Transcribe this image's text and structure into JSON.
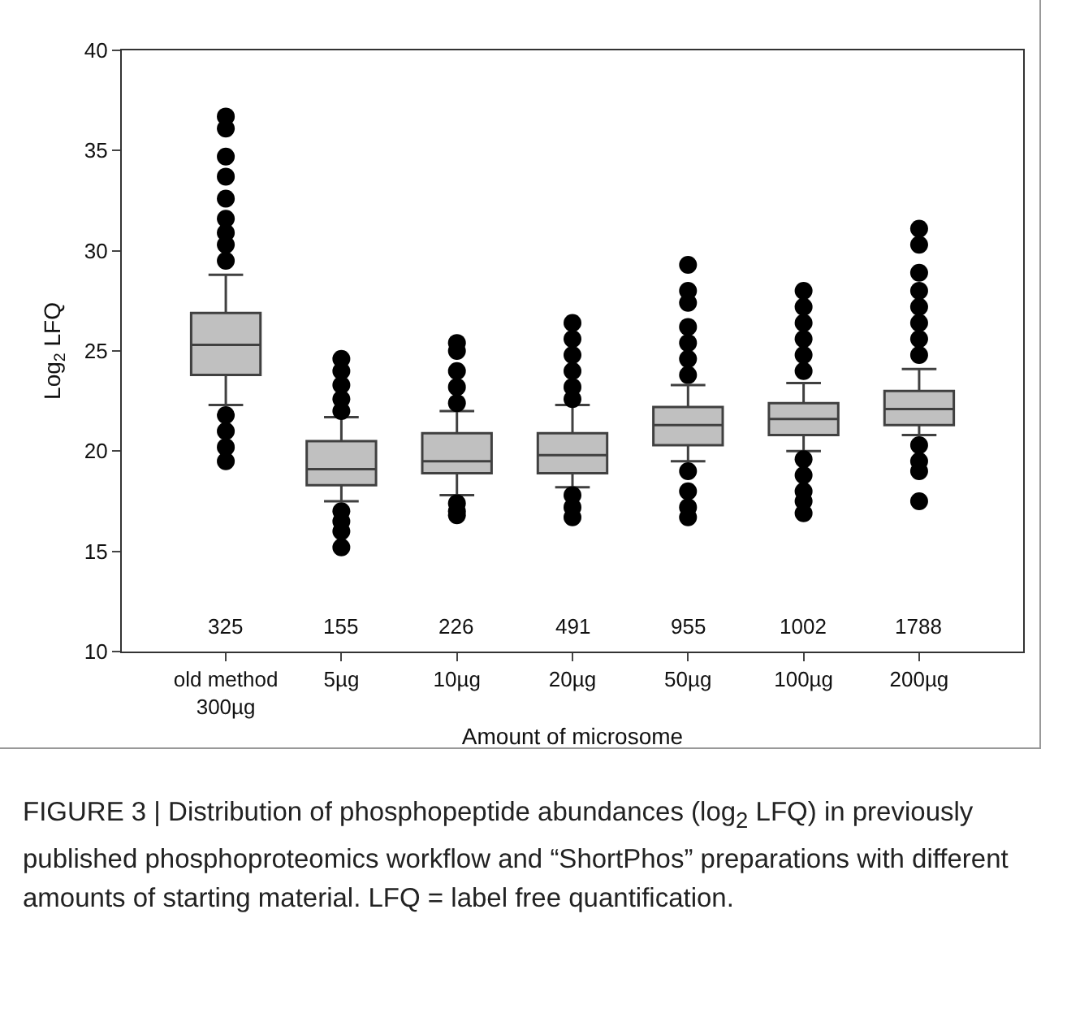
{
  "chart_data": {
    "type": "box",
    "xlabel": "Amount of microsome",
    "ylabel": "Log$_{2}$ LFQ",
    "categories": [
      "old method\n300µg",
      "5µg",
      "10µg",
      "20µg",
      "50µg",
      "100µg",
      "200µg"
    ],
    "ylim": [
      10,
      40
    ],
    "yticks": [
      10,
      15,
      20,
      25,
      30,
      35,
      40
    ],
    "grid": false,
    "marker": "circle",
    "color": "#c0c0c0",
    "boxes": [
      {
        "low": 22.3,
        "q1": 23.8,
        "median": 25.3,
        "q3": 26.9,
        "high": 28.8,
        "outliers": [
          36.7,
          36.1,
          34.7,
          33.7,
          32.6,
          31.6,
          30.9,
          30.3,
          29.5,
          21.8,
          21.0,
          20.2,
          19.5
        ]
      },
      {
        "low": 17.5,
        "q1": 18.3,
        "median": 19.1,
        "q3": 20.5,
        "high": 21.7,
        "outliers": [
          24.6,
          24.0,
          23.3,
          22.6,
          22.0,
          17.0,
          16.5,
          16.0,
          15.2
        ]
      },
      {
        "low": 17.8,
        "q1": 18.9,
        "median": 19.5,
        "q3": 20.9,
        "high": 22.0,
        "outliers": [
          25.4,
          25.0,
          24.0,
          23.2,
          22.4,
          17.4,
          17.0,
          16.8
        ]
      },
      {
        "low": 18.2,
        "q1": 18.9,
        "median": 19.8,
        "q3": 20.9,
        "high": 22.3,
        "outliers": [
          26.4,
          25.6,
          24.8,
          24.0,
          23.2,
          22.6,
          17.8,
          17.2,
          16.7
        ]
      },
      {
        "low": 19.5,
        "q1": 20.3,
        "median": 21.3,
        "q3": 22.2,
        "high": 23.3,
        "outliers": [
          29.3,
          28.0,
          27.4,
          26.2,
          25.4,
          24.6,
          23.8,
          19.0,
          18.0,
          17.2,
          16.7
        ]
      },
      {
        "low": 20.0,
        "q1": 20.8,
        "median": 21.6,
        "q3": 22.4,
        "high": 23.4,
        "outliers": [
          28.0,
          27.2,
          26.4,
          25.6,
          24.8,
          24.0,
          19.6,
          18.8,
          18.0,
          17.5,
          16.9
        ]
      },
      {
        "low": 20.8,
        "q1": 21.3,
        "median": 22.1,
        "q3": 23.0,
        "high": 24.1,
        "outliers": [
          31.1,
          30.3,
          28.9,
          28.0,
          27.2,
          26.4,
          25.6,
          24.8,
          20.3,
          19.5,
          19.0,
          17.5
        ]
      }
    ],
    "annotations": [
      "325",
      "155",
      "226",
      "491",
      "955",
      "1002",
      "1788",
      "FIGURE 3 | Distribution of phosphopeptide abundances (log$_{2}$ LFQ) in previously published phosphoproteomics workflow and “ShortPhos” preparations with different amounts of starting material. LFQ = label free quantification."
    ]
  }
}
